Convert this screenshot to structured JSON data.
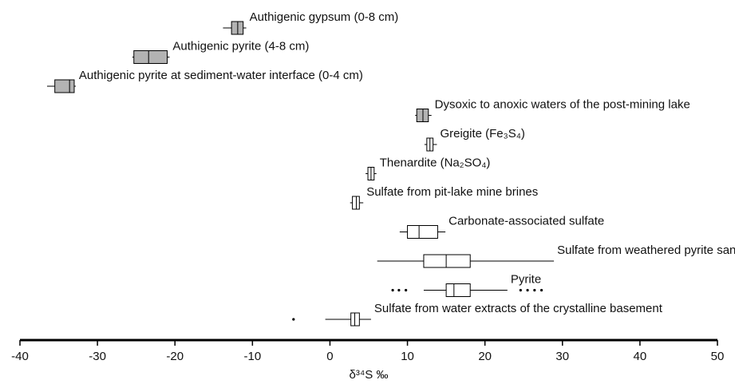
{
  "chart_data": {
    "type": "box",
    "orientation": "horizontal",
    "x_label": "δ³⁴S ‰",
    "xlim": [
      -40,
      50
    ],
    "xticks": [
      -40,
      -30,
      -20,
      -10,
      0,
      10,
      20,
      30,
      40,
      50
    ],
    "series": [
      {
        "name": "Authigenic gypsum (0-8 cm)",
        "color": "#b3b3b3",
        "min": -13.8,
        "q1": -12.7,
        "median": -11.9,
        "q3": -11.2,
        "max": -10.8,
        "outliers": []
      },
      {
        "name": "Authigenic pyrite (4-8 cm)",
        "color": "#b3b3b3",
        "min": -25.5,
        "q1": -25.3,
        "median": -23.4,
        "q3": -21.0,
        "max": -20.7,
        "outliers": []
      },
      {
        "name": "Authigenic pyrite at sediment-water interface (0-4 cm)",
        "color": "#b3b3b3",
        "min": -36.5,
        "q1": -35.5,
        "median": -33.6,
        "q3": -33.0,
        "max": -32.8,
        "outliers": []
      },
      {
        "name": "Dysoxic to anoxic waters of the post-mining lake",
        "color": "#b3b3b3",
        "min": 11.0,
        "q1": 11.2,
        "median": 12.0,
        "q3": 12.7,
        "max": 13.1,
        "outliers": []
      },
      {
        "name": "Greigite (Fe₃S₄)",
        "color": "#ffffff",
        "min": 12.2,
        "q1": 12.5,
        "median": 12.9,
        "q3": 13.3,
        "max": 13.8,
        "outliers": []
      },
      {
        "name": "Thenardite (Na₂SO₄)",
        "color": "#ffffff",
        "min": 4.6,
        "q1": 4.9,
        "median": 5.3,
        "q3": 5.7,
        "max": 6.0,
        "outliers": []
      },
      {
        "name": "Sulfate from pit-lake mine brines",
        "color": "#ffffff",
        "min": 2.6,
        "q1": 2.9,
        "median": 3.4,
        "q3": 3.8,
        "max": 4.3,
        "outliers": []
      },
      {
        "name": "Carbonate-associated sulfate",
        "color": "#ffffff",
        "min": 9.0,
        "q1": 10.0,
        "median": 11.5,
        "q3": 13.9,
        "max": 14.9,
        "outliers": []
      },
      {
        "name": "Sulfate from weathered pyrite sand",
        "color": "#ffffff",
        "min": 6.1,
        "q1": 12.1,
        "median": 15.0,
        "q3": 18.1,
        "max": 28.9,
        "outliers": []
      },
      {
        "name": "Pyrite",
        "color": "#ffffff",
        "min": 12.1,
        "q1": 15.0,
        "median": 16.0,
        "q3": 18.1,
        "max": 22.9,
        "outliers": [
          8.1,
          8.9,
          9.8,
          24.6,
          25.5,
          26.4,
          27.3
        ]
      },
      {
        "name": "Sulfate from water extracts of the crystalline basement",
        "color": "#ffffff",
        "min": -0.6,
        "q1": 2.7,
        "median": 3.2,
        "q3": 3.8,
        "max": 5.3,
        "outliers": [
          -4.7
        ]
      }
    ]
  }
}
